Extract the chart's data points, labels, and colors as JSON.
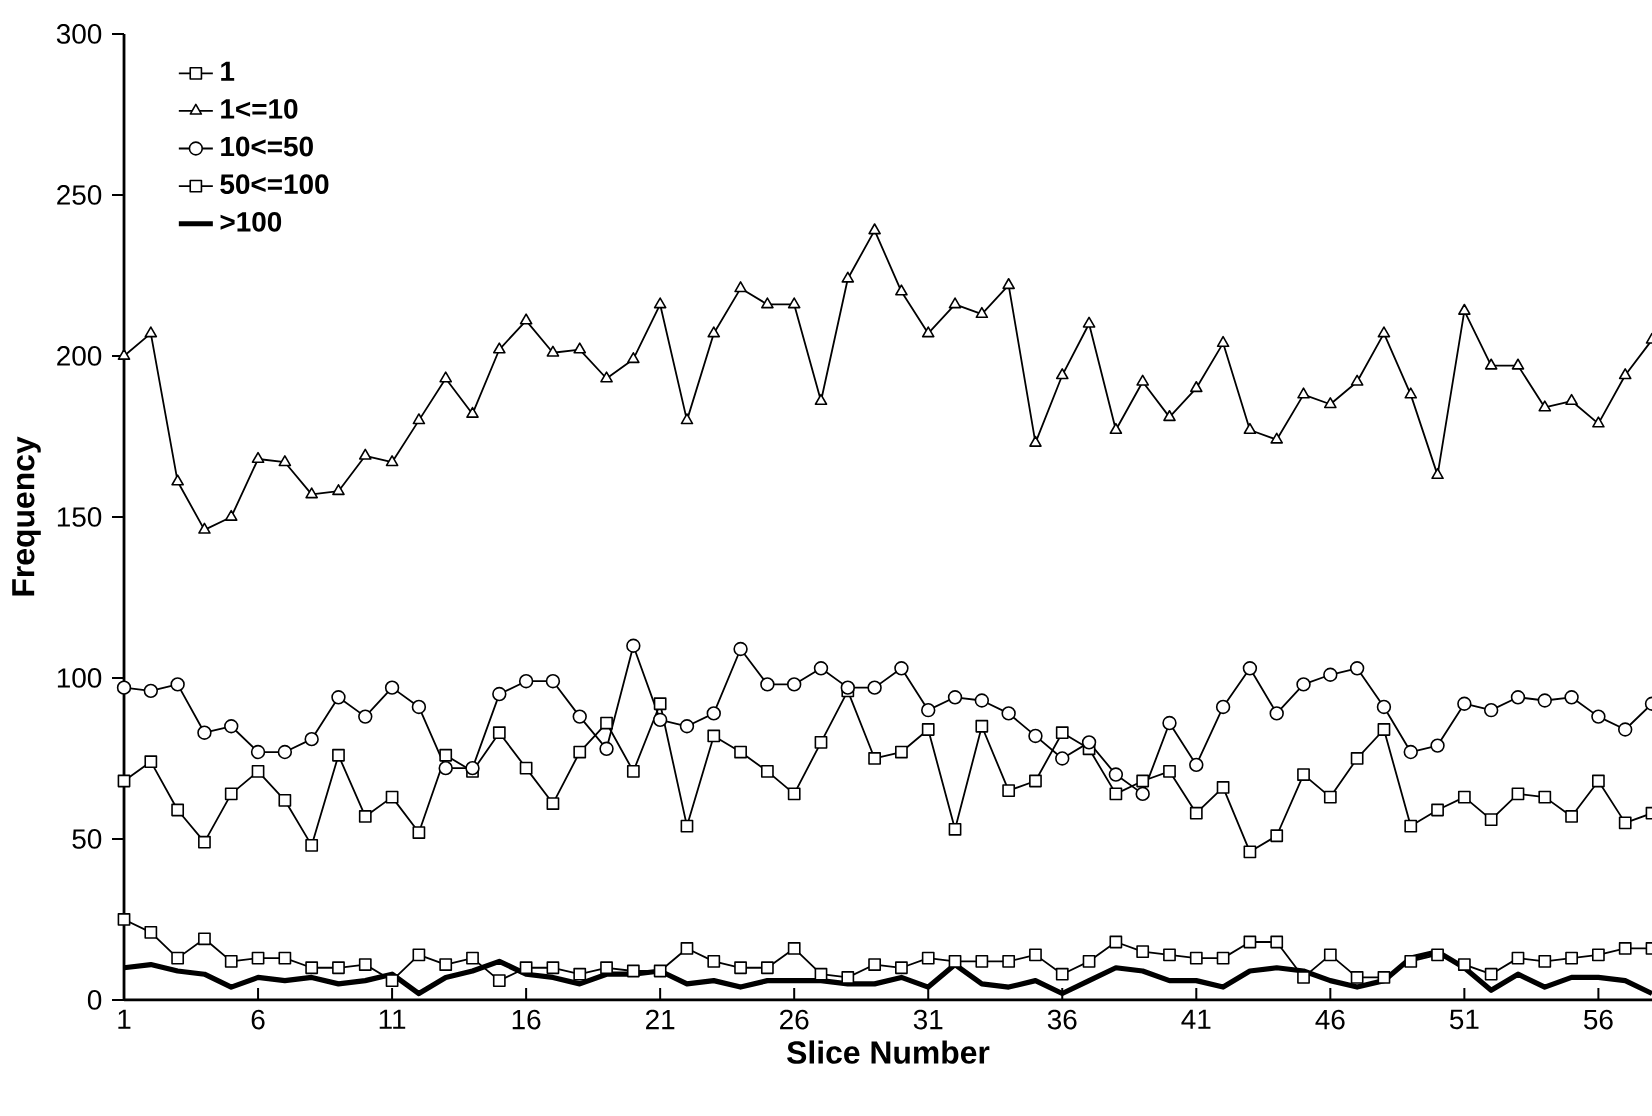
{
  "chart_data": {
    "type": "line",
    "xlabel": "Slice Number",
    "ylabel": "Frequency",
    "x": [
      1,
      2,
      3,
      4,
      5,
      6,
      7,
      8,
      9,
      10,
      11,
      12,
      13,
      14,
      15,
      16,
      17,
      18,
      19,
      20,
      21,
      22,
      23,
      24,
      25,
      26,
      27,
      28,
      29,
      30,
      31,
      32,
      33,
      34,
      35,
      36,
      37,
      38,
      39,
      40,
      41,
      42,
      43,
      44,
      45,
      46,
      47,
      48,
      49,
      50,
      51,
      52,
      53,
      54,
      55,
      56,
      57,
      58
    ],
    "xlim": [
      1,
      58
    ],
    "xticks": [
      1,
      6,
      11,
      16,
      21,
      26,
      31,
      36,
      41,
      46,
      51,
      56
    ],
    "ylim": [
      0,
      300
    ],
    "yticks": [
      0,
      50,
      100,
      150,
      200,
      250,
      300
    ],
    "grid": false,
    "legend": "top left",
    "line_style": "solid",
    "series": [
      {
        "name": "1",
        "color": "#000000",
        "marker": "square",
        "values": [
          68,
          74,
          59,
          49,
          64,
          71,
          62,
          48,
          76,
          57,
          63,
          52,
          76,
          71,
          83,
          72,
          61,
          77,
          86,
          71,
          92,
          54,
          82,
          77,
          71,
          64,
          80,
          96,
          75,
          77,
          84,
          53,
          85,
          65,
          68,
          83,
          78,
          64,
          68,
          71,
          58,
          66,
          46,
          51,
          70,
          63,
          75,
          84,
          54,
          59,
          63,
          56,
          64,
          63,
          57,
          68,
          55,
          58
        ]
      },
      {
        "name": "1<=10",
        "color": "#000000",
        "marker": "triangle",
        "values": [
          200,
          207,
          161,
          146,
          150,
          168,
          167,
          157,
          158,
          169,
          167,
          180,
          193,
          182,
          202,
          211,
          201,
          202,
          193,
          199,
          216,
          180,
          207,
          221,
          216,
          216,
          186,
          224,
          239,
          220,
          207,
          216,
          213,
          222,
          173,
          194,
          210,
          177,
          192,
          181,
          190,
          204,
          177,
          174,
          188,
          185,
          192,
          207,
          188,
          163,
          214,
          197,
          197,
          184,
          186,
          179,
          194,
          205
        ]
      },
      {
        "name": "10<=50",
        "color": "#000000",
        "marker": "circle",
        "values": [
          97,
          96,
          98,
          83,
          85,
          77,
          77,
          81,
          94,
          88,
          97,
          91,
          72,
          72,
          95,
          99,
          99,
          88,
          78,
          110,
          87,
          85,
          89,
          109,
          98,
          98,
          103,
          97,
          97,
          103,
          90,
          94,
          93,
          89,
          82,
          75,
          80,
          70,
          64,
          86,
          73,
          91,
          103,
          89,
          98,
          101,
          103,
          91,
          77,
          79,
          92,
          90,
          94,
          93,
          94,
          88,
          84,
          92
        ]
      },
      {
        "name": "50<=100",
        "color": "#000000",
        "marker": "square",
        "values": [
          25,
          21,
          13,
          19,
          12,
          13,
          13,
          10,
          10,
          11,
          6,
          14,
          11,
          13,
          6,
          10,
          10,
          8,
          10,
          9,
          9,
          16,
          12,
          10,
          10,
          16,
          8,
          7,
          11,
          10,
          13,
          12,
          12,
          12,
          14,
          8,
          12,
          18,
          15,
          14,
          13,
          13,
          18,
          18,
          7,
          14,
          7,
          7,
          12,
          14,
          11,
          8,
          13,
          12,
          13,
          14,
          16,
          16
        ]
      },
      {
        "name": ">100",
        "color": "#000000",
        "marker": "none",
        "values": [
          10,
          11,
          9,
          8,
          4,
          7,
          6,
          7,
          5,
          6,
          8,
          2,
          7,
          9,
          12,
          8,
          7,
          5,
          8,
          8,
          9,
          5,
          6,
          4,
          6,
          6,
          6,
          5,
          5,
          7,
          4,
          11,
          5,
          4,
          6,
          2,
          6,
          10,
          9,
          6,
          6,
          4,
          9,
          10,
          9,
          6,
          4,
          6,
          13,
          15,
          10,
          3,
          8,
          4,
          7,
          7,
          6,
          2
        ]
      }
    ]
  }
}
